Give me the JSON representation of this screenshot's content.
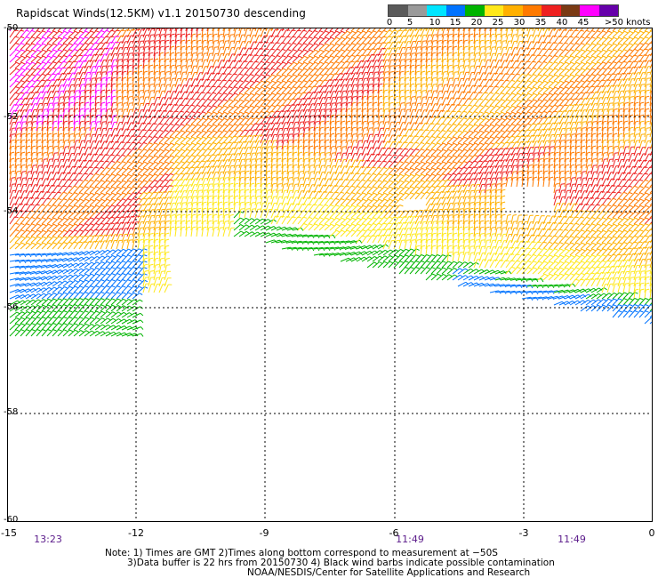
{
  "header": {
    "title": "Rapidscat Winds(12.5KM) v1.1 20150730 descending"
  },
  "legend": {
    "ticks": [
      "0",
      "5",
      "10",
      "15",
      "20",
      "25",
      "30",
      "35",
      "40",
      "45",
      ">50 knots"
    ],
    "colors": [
      "#5a5a5a",
      "#9a9a9a",
      "#00e5ff",
      "#0073ff",
      "#00b400",
      "#ffe81a",
      "#ffb000",
      "#ff7a00",
      "#ee2020",
      "#7a3a14",
      "#ff00ff",
      "#6600aa"
    ]
  },
  "axes": {
    "y_ticks": [
      "-50",
      "-52",
      "-54",
      "-56",
      "-58",
      "-60"
    ],
    "x_ticks": [
      "-15",
      "-12",
      "-9",
      "-6",
      "-3",
      "0"
    ],
    "lon_range": [
      -15,
      0
    ],
    "lat_range": [
      -50,
      -60
    ]
  },
  "times": [
    "13:23",
    "11:49",
    "11:49"
  ],
  "notes": {
    "line1": "Note: 1) Times are GMT 2)Times along bottom correspond to measurement at −50S",
    "line2": "3)Data buffer is 22 hrs from 20150730 4) Black wind barbs indicate possible contamination",
    "line3": "NOAA/NESDIS/Center for Satellite Applications and Research"
  }
}
